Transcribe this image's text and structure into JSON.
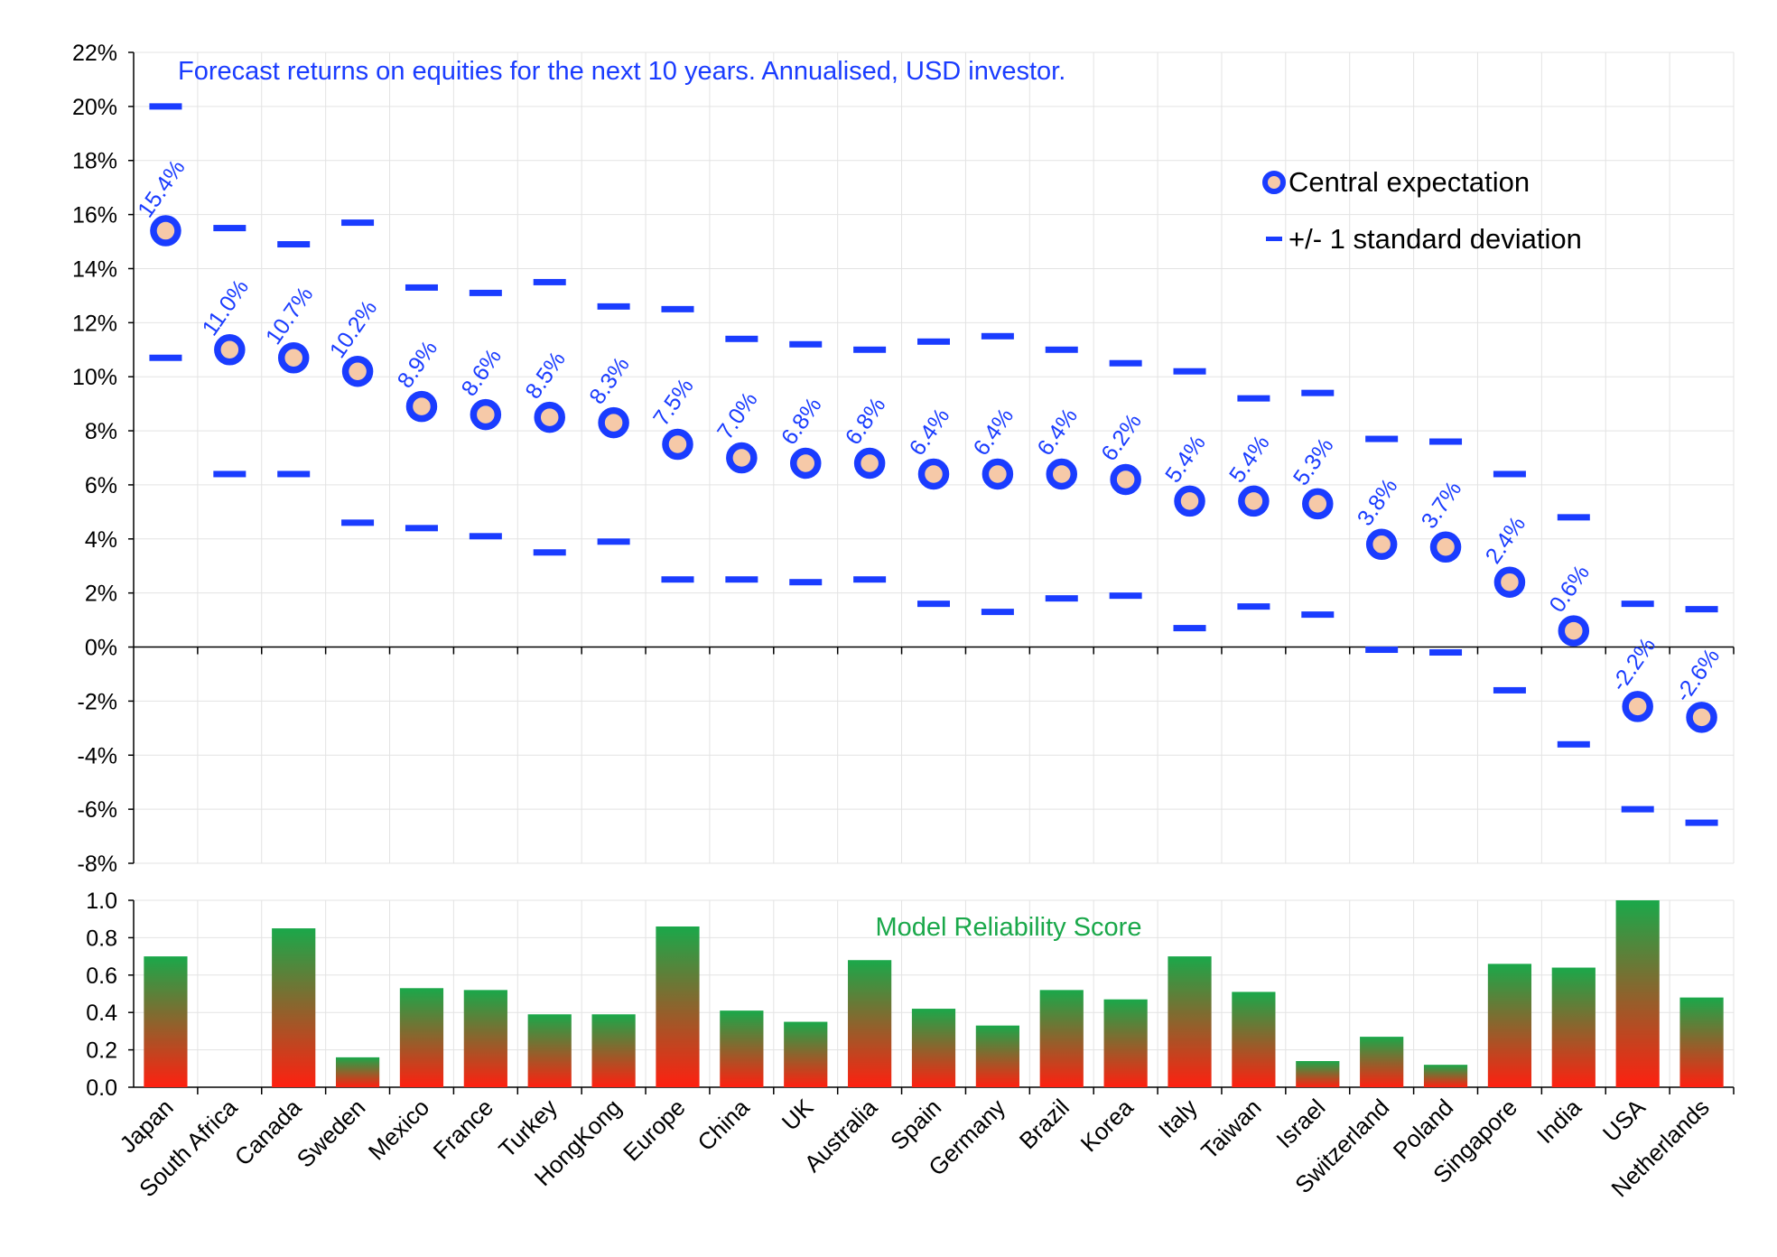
{
  "chart_data": [
    {
      "type": "scatter",
      "title": "Forecast returns on equities for the next 10 years. Annualised, USD investor.",
      "ylim": [
        -8,
        22
      ],
      "ytick_step": 2,
      "ytick_suffix": "%",
      "categories": [
        "Japan",
        "South Africa",
        "Canada",
        "Sweden",
        "Mexico",
        "France",
        "Turkey",
        "HongKong",
        "Europe",
        "China",
        "UK",
        "Australia",
        "Spain",
        "Germany",
        "Brazil",
        "Korea",
        "Italy",
        "Taiwan",
        "Israel",
        "Switzerland",
        "Poland",
        "Singapore",
        "India",
        "USA",
        "Netherlands"
      ],
      "series": [
        {
          "name": "Central expectation",
          "values": [
            15.4,
            11.0,
            10.7,
            10.2,
            8.9,
            8.6,
            8.5,
            8.3,
            7.5,
            7.0,
            6.8,
            6.8,
            6.4,
            6.4,
            6.4,
            6.2,
            5.4,
            5.4,
            5.3,
            3.8,
            3.7,
            2.4,
            0.6,
            -2.2,
            -2.6
          ]
        },
        {
          "name": "+/- 1 standard deviation",
          "upper": [
            20.0,
            15.5,
            14.9,
            15.7,
            13.3,
            13.1,
            13.5,
            12.6,
            12.5,
            11.4,
            11.2,
            11.0,
            11.3,
            11.5,
            11.0,
            10.5,
            10.2,
            9.2,
            9.4,
            7.7,
            7.6,
            6.4,
            4.8,
            1.6,
            1.4
          ],
          "lower": [
            10.7,
            6.4,
            6.4,
            4.6,
            4.4,
            4.1,
            3.5,
            3.9,
            2.5,
            2.5,
            2.4,
            2.5,
            1.6,
            1.3,
            1.8,
            1.9,
            0.7,
            1.5,
            1.2,
            -0.1,
            -0.2,
            -1.6,
            -3.6,
            -6.0,
            -6.5
          ]
        }
      ],
      "data_labels": [
        "15.4%",
        "11.0%",
        "10.7%",
        "10.2%",
        "8.9%",
        "8.6%",
        "8.5%",
        "8.3%",
        "7.5%",
        "7.0%",
        "6.8%",
        "6.8%",
        "6.4%",
        "6.4%",
        "6.4%",
        "6.2%",
        "5.4%",
        "5.4%",
        "5.3%",
        "3.8%",
        "3.7%",
        "2.4%",
        "0.6%",
        "-2.2%",
        "-2.6%"
      ],
      "legend": [
        "Central expectation",
        "+/- 1 standard deviation"
      ],
      "legend_position": "top-right",
      "grid": true,
      "colors": {
        "marker_edge": "#1a3cff",
        "marker_fill": "#f6c9a8",
        "sd": "#1a3cff",
        "title": "#1a3cff",
        "labels": "#1a3cff"
      }
    },
    {
      "type": "bar",
      "title": "Model Reliability Score",
      "ylim": [
        0,
        1
      ],
      "ytick_step": 0.2,
      "categories": [
        "Japan",
        "South Africa",
        "Canada",
        "Sweden",
        "Mexico",
        "France",
        "Turkey",
        "HongKong",
        "Europe",
        "China",
        "UK",
        "Australia",
        "Spain",
        "Germany",
        "Brazil",
        "Korea",
        "Italy",
        "Taiwan",
        "Israel",
        "Switzerland",
        "Poland",
        "Singapore",
        "India",
        "USA",
        "Netherlands"
      ],
      "values": [
        0.7,
        0.0,
        0.85,
        0.16,
        0.53,
        0.52,
        0.39,
        0.39,
        0.86,
        0.41,
        0.35,
        0.68,
        0.42,
        0.33,
        0.52,
        0.47,
        0.7,
        0.51,
        0.14,
        0.27,
        0.12,
        0.66,
        0.64,
        1.0,
        0.48
      ],
      "grid": true,
      "colors": {
        "bar_top": "#1aa84a",
        "bar_bottom": "#ff2010",
        "title": "#1aa84a"
      }
    }
  ]
}
